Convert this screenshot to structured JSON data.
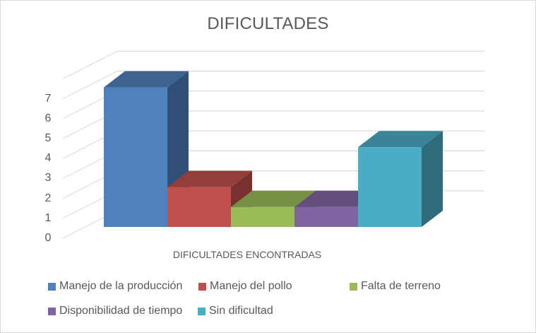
{
  "chart_data": {
    "type": "bar",
    "variant": "3d-clustered-column",
    "title": "DIFICULTADES",
    "xlabel": "DIFICULTADES ENCONTRADAS",
    "ylabel": "",
    "ylim": [
      0,
      8
    ],
    "yticks": [
      "0",
      "1",
      "2",
      "3",
      "4",
      "5",
      "6",
      "7"
    ],
    "grid": true,
    "legend_position": "bottom",
    "categories": [
      "DIFICULTADES ENCONTRADAS"
    ],
    "series": [
      {
        "name": "Manejo de la producción",
        "values": [
          7
        ],
        "color": "#4F81BD"
      },
      {
        "name": "Manejo del pollo",
        "values": [
          2
        ],
        "color": "#C0504D"
      },
      {
        "name": "Falta de terreno",
        "values": [
          1
        ],
        "color": "#9BBB59"
      },
      {
        "name": "Disponibilidad de tiempo",
        "values": [
          1
        ],
        "color": "#8064A2"
      },
      {
        "name": "Sin dificultad",
        "values": [
          4
        ],
        "color": "#4BACC6"
      }
    ]
  }
}
